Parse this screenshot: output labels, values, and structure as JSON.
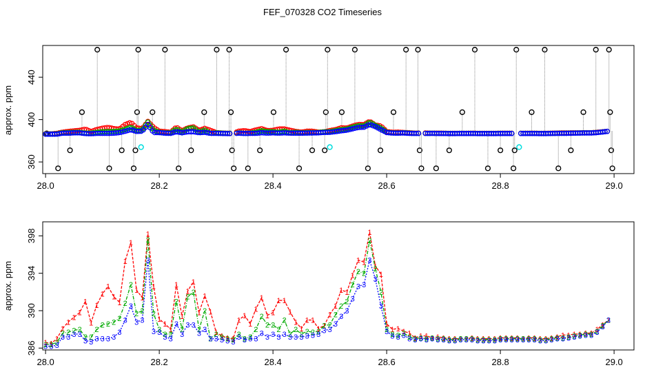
{
  "figure": {
    "title": "FEF_070328  CO2 Timeseries"
  },
  "chart_data": [
    {
      "type": "scatter",
      "title": "FEF_070328  CO2 Timeseries",
      "xlabel": "",
      "ylabel": "approx. ppm",
      "xlim": [
        27.995,
        29.035
      ],
      "ylim": [
        349,
        470
      ],
      "xticks": [
        28.0,
        28.2,
        28.4,
        28.6,
        28.8,
        29.0
      ],
      "xtick_labels": [
        "28.0",
        "28.2",
        "28.4",
        "28.6",
        "28.8",
        "29.0"
      ],
      "yticks": [
        360,
        400,
        440
      ],
      "ytick_labels": [
        "360",
        "400",
        "440"
      ],
      "grid": false,
      "colors": {
        "series1": "#ff0000",
        "series2": "#00aa00",
        "series3": "#0000ff",
        "calibration": "#000000",
        "reference": "#00dddd"
      },
      "calibration_spikes": [
        {
          "x": 28.002,
          "y": 387
        },
        {
          "x": 28.022,
          "y": 354
        },
        {
          "x": 28.043,
          "y": 371
        },
        {
          "x": 28.064,
          "y": 407
        },
        {
          "x": 28.091,
          "y": 466
        },
        {
          "x": 28.112,
          "y": 354
        },
        {
          "x": 28.134,
          "y": 371
        },
        {
          "x": 28.155,
          "y": 354
        },
        {
          "x": 28.158,
          "y": 371
        },
        {
          "x": 28.161,
          "y": 407
        },
        {
          "x": 28.163,
          "y": 466
        },
        {
          "x": 28.188,
          "y": 407
        },
        {
          "x": 28.21,
          "y": 466
        },
        {
          "x": 28.234,
          "y": 354
        },
        {
          "x": 28.256,
          "y": 371
        },
        {
          "x": 28.279,
          "y": 407
        },
        {
          "x": 28.301,
          "y": 466
        },
        {
          "x": 28.323,
          "y": 466
        },
        {
          "x": 28.326,
          "y": 407
        },
        {
          "x": 28.328,
          "y": 371
        },
        {
          "x": 28.331,
          "y": 354
        },
        {
          "x": 28.356,
          "y": 354
        },
        {
          "x": 28.377,
          "y": 371
        },
        {
          "x": 28.401,
          "y": 407
        },
        {
          "x": 28.423,
          "y": 466
        },
        {
          "x": 28.446,
          "y": 354
        },
        {
          "x": 28.469,
          "y": 371
        },
        {
          "x": 28.491,
          "y": 371
        },
        {
          "x": 28.493,
          "y": 407
        },
        {
          "x": 28.496,
          "y": 466
        },
        {
          "x": 28.521,
          "y": 407
        },
        {
          "x": 28.544,
          "y": 466
        },
        {
          "x": 28.567,
          "y": 354
        },
        {
          "x": 28.589,
          "y": 371
        },
        {
          "x": 28.612,
          "y": 407
        },
        {
          "x": 28.634,
          "y": 466
        },
        {
          "x": 28.655,
          "y": 466
        },
        {
          "x": 28.658,
          "y": 371
        },
        {
          "x": 28.661,
          "y": 354
        },
        {
          "x": 28.687,
          "y": 354
        },
        {
          "x": 28.71,
          "y": 371
        },
        {
          "x": 28.733,
          "y": 407
        },
        {
          "x": 28.755,
          "y": 466
        },
        {
          "x": 28.778,
          "y": 354
        },
        {
          "x": 28.8,
          "y": 371
        },
        {
          "x": 28.823,
          "y": 354
        },
        {
          "x": 28.825,
          "y": 371
        },
        {
          "x": 28.828,
          "y": 466
        },
        {
          "x": 28.855,
          "y": 407
        },
        {
          "x": 28.878,
          "y": 466
        },
        {
          "x": 28.902,
          "y": 354
        },
        {
          "x": 28.924,
          "y": 371
        },
        {
          "x": 28.946,
          "y": 407
        },
        {
          "x": 28.968,
          "y": 466
        },
        {
          "x": 28.991,
          "y": 466
        },
        {
          "x": 28.993,
          "y": 407
        },
        {
          "x": 28.995,
          "y": 371
        },
        {
          "x": 28.997,
          "y": 354
        }
      ],
      "reference_points": [
        {
          "x": 28.168,
          "y": 374
        },
        {
          "x": 28.5,
          "y": 374
        },
        {
          "x": 28.833,
          "y": 374
        }
      ]
    },
    {
      "type": "line",
      "title": "",
      "xlabel": "",
      "ylabel": "approx. ppm",
      "xlim": [
        27.995,
        29.035
      ],
      "ylim": [
        385.8,
        399.5
      ],
      "xticks": [
        28.0,
        28.2,
        28.4,
        28.6,
        28.8,
        29.0
      ],
      "xtick_labels": [
        "28.0",
        "28.2",
        "28.4",
        "28.6",
        "28.8",
        "29.0"
      ],
      "yticks": [
        386,
        390,
        394,
        398
      ],
      "ytick_labels": [
        "386",
        "390",
        "394",
        "398"
      ],
      "grid": false,
      "series_markers": [
        "1",
        "2",
        "3"
      ],
      "series_colors": [
        "#ff0000",
        "#00aa00",
        "#0000ff"
      ],
      "x": [
        28.0,
        28.01,
        28.02,
        28.03,
        28.04,
        28.05,
        28.06,
        28.07,
        28.08,
        28.09,
        28.1,
        28.11,
        28.12,
        28.13,
        28.14,
        28.15,
        28.16,
        28.17,
        28.18,
        28.19,
        28.2,
        28.21,
        28.22,
        28.23,
        28.24,
        28.25,
        28.26,
        28.27,
        28.28,
        28.29,
        28.3,
        28.31,
        28.32,
        28.33,
        28.34,
        28.35,
        28.36,
        28.37,
        28.38,
        28.39,
        28.4,
        28.41,
        28.42,
        28.43,
        28.44,
        28.45,
        28.46,
        28.47,
        28.48,
        28.49,
        28.5,
        28.51,
        28.52,
        28.53,
        28.54,
        28.55,
        28.56,
        28.57,
        28.58,
        28.59,
        28.6,
        28.61,
        28.62,
        28.63,
        28.64,
        28.65,
        28.66,
        28.67,
        28.68,
        28.69,
        28.7,
        28.71,
        28.72,
        28.73,
        28.74,
        28.75,
        28.76,
        28.77,
        28.78,
        28.79,
        28.8,
        28.81,
        28.82,
        28.83,
        28.84,
        28.85,
        28.86,
        28.87,
        28.88,
        28.89,
        28.9,
        28.91,
        28.92,
        28.93,
        28.94,
        28.95,
        28.96,
        28.97,
        28.98,
        28.99
      ],
      "series": [
        {
          "values": [
            386.6,
            386.5,
            387.0,
            388.1,
            388.8,
            389.3,
            389.8,
            391.0,
            388.7,
            390.6,
            391.8,
            392.6,
            391.5,
            390.9,
            395.3,
            397.3,
            392.2,
            391.4,
            398.2,
            392.6,
            389.1,
            388.6,
            388.0,
            392.8,
            389.4,
            392.1,
            393.1,
            389.8,
            391.6,
            389.9,
            387.7,
            387.3,
            387.1,
            387.0,
            389.0,
            389.5,
            388.6,
            390.2,
            391.4,
            389.5,
            389.8,
            391.1,
            391.1,
            389.9,
            388.8,
            388.1,
            389.0,
            389.0,
            388.1,
            388.4,
            389.6,
            390.5,
            392.2,
            392.0,
            393.8,
            395.4,
            395.2,
            398.4,
            394.8,
            393.9,
            388.6,
            388.0,
            388.1,
            387.8,
            387.6,
            387.1,
            387.3,
            387.3,
            387.1,
            387.2,
            387.1,
            387.0,
            387.0,
            387.0,
            387.0,
            387.1,
            387.0,
            387.0,
            387.0,
            387.0,
            387.1,
            387.1,
            387.1,
            387.1,
            387.0,
            387.1,
            387.1,
            387.0,
            387.0,
            387.1,
            387.2,
            387.4,
            387.4,
            387.5,
            387.5,
            387.6,
            387.6,
            388.0,
            388.5,
            389.0
          ]
        },
        {
          "values": [
            386.4,
            386.4,
            386.6,
            387.6,
            387.7,
            387.9,
            388.0,
            387.2,
            387.2,
            388.0,
            388.5,
            388.6,
            388.8,
            389.2,
            390.8,
            392.8,
            389.7,
            390.0,
            397.6,
            389.7,
            388.0,
            387.5,
            387.5,
            391.0,
            388.0,
            391.5,
            392.0,
            388.0,
            390.0,
            387.0,
            387.5,
            387.2,
            387.0,
            386.9,
            387.5,
            387.0,
            387.2,
            388.0,
            389.4,
            388.5,
            388.5,
            388.0,
            389.0,
            387.5,
            388.0,
            387.5,
            387.8,
            387.7,
            387.8,
            388.4,
            388.5,
            389.6,
            390.5,
            391.0,
            392.8,
            394.2,
            394.0,
            397.5,
            394.5,
            392.0,
            388.0,
            387.5,
            387.4,
            387.6,
            387.2,
            387.0,
            387.1,
            387.0,
            387.1,
            387.0,
            387.0,
            386.9,
            386.9,
            387.0,
            387.0,
            387.0,
            386.9,
            386.9,
            386.9,
            386.9,
            387.0,
            387.0,
            387.0,
            387.0,
            387.0,
            387.0,
            387.0,
            386.9,
            386.9,
            387.0,
            387.1,
            387.1,
            387.2,
            387.3,
            387.4,
            387.5,
            387.5,
            387.8,
            388.4,
            389.0
          ]
        },
        {
          "values": [
            386.2,
            386.2,
            386.3,
            387.2,
            387.2,
            387.5,
            387.5,
            386.8,
            386.7,
            387.0,
            387.0,
            387.0,
            387.2,
            387.7,
            389.0,
            390.5,
            388.8,
            389.0,
            395.4,
            387.8,
            387.7,
            387.2,
            387.0,
            388.6,
            387.5,
            388.5,
            388.5,
            387.6,
            388.0,
            387.0,
            387.0,
            386.9,
            386.8,
            386.7,
            387.2,
            386.9,
            387.0,
            387.0,
            387.6,
            387.2,
            387.5,
            387.2,
            387.5,
            387.2,
            387.2,
            387.2,
            387.3,
            387.4,
            387.5,
            387.9,
            388.0,
            388.6,
            389.4,
            390.0,
            391.3,
            392.6,
            392.8,
            395.4,
            393.4,
            390.5,
            387.8,
            387.3,
            387.2,
            387.4,
            387.0,
            386.9,
            387.0,
            386.9,
            387.0,
            386.9,
            386.9,
            386.8,
            386.8,
            386.9,
            386.9,
            386.9,
            386.8,
            386.8,
            386.8,
            386.8,
            386.9,
            386.9,
            386.9,
            386.9,
            386.9,
            386.9,
            386.9,
            386.8,
            386.8,
            386.9,
            387.0,
            387.0,
            387.1,
            387.2,
            387.3,
            387.4,
            387.4,
            387.7,
            388.3,
            389.0
          ]
        }
      ]
    }
  ]
}
